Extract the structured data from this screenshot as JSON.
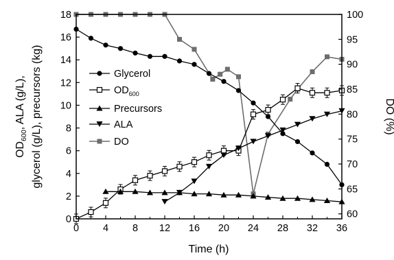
{
  "chart_data": {
    "type": "line",
    "xlabel": "Time (h)",
    "ylabel_left": {
      "line1_pre": "OD",
      "line1_sub": "600",
      "line1_post": ", ALA (g/L),",
      "line2": "glycerol (g/L), precursors (kg)"
    },
    "ylabel_right": "DO (%)",
    "xlim": [
      0,
      36
    ],
    "ylim_left": [
      0,
      18
    ],
    "ylim_right": [
      59,
      100
    ],
    "x_ticks": [
      "0",
      "4",
      "8",
      "12",
      "16",
      "20",
      "24",
      "28",
      "32",
      "36"
    ],
    "y_left_ticks": [
      "0",
      "2",
      "4",
      "6",
      "8",
      "10",
      "12",
      "14",
      "16",
      "18"
    ],
    "y_right_ticks": [
      "60",
      "65",
      "70",
      "75",
      "80",
      "85",
      "90",
      "95",
      "100"
    ],
    "legend": {
      "position": "center-left",
      "glycerol": "Glycerol",
      "od_pre": "OD",
      "od_sub": "600",
      "precursors": "Precursors",
      "ala": "ALA",
      "do": "DO"
    },
    "series": [
      {
        "name": "Glycerol",
        "axis": "left",
        "marker": "circle-filled",
        "x": [
          0,
          2,
          4,
          6,
          8,
          10,
          12,
          14,
          16,
          18,
          20,
          22,
          24,
          26,
          28,
          30,
          32,
          34,
          36
        ],
        "y": [
          16.7,
          15.9,
          15.3,
          15.0,
          14.6,
          14.3,
          14.3,
          13.9,
          13.6,
          12.8,
          12.1,
          11.3,
          10.2,
          9.0,
          7.5,
          6.8,
          5.8,
          4.8,
          3.0
        ]
      },
      {
        "name": "OD600",
        "axis": "left",
        "marker": "square-open",
        "x": [
          0,
          2,
          4,
          6,
          8,
          10,
          12,
          14,
          16,
          18,
          20,
          22,
          24,
          26,
          28,
          30,
          32,
          34,
          36
        ],
        "y": [
          0.0,
          0.6,
          1.4,
          2.6,
          3.4,
          3.8,
          4.2,
          4.6,
          5.0,
          5.6,
          6.0,
          6.0,
          9.2,
          9.6,
          10.5,
          11.5,
          11.1,
          11.1,
          11.3
        ]
      },
      {
        "name": "Precursors",
        "axis": "left",
        "marker": "triangle-up",
        "x": [
          4,
          6,
          8,
          10,
          12,
          14,
          16,
          18,
          20,
          22,
          24,
          26,
          28,
          30,
          32,
          34,
          36
        ],
        "y": [
          2.4,
          2.4,
          2.4,
          2.3,
          2.3,
          2.3,
          2.2,
          2.2,
          2.1,
          2.1,
          2.0,
          1.9,
          1.8,
          1.8,
          1.7,
          1.6,
          1.5
        ]
      },
      {
        "name": "ALA",
        "axis": "left",
        "marker": "triangle-down",
        "x": [
          12,
          14,
          16,
          18,
          20,
          22,
          24,
          26,
          28,
          30,
          32,
          34,
          36
        ],
        "y": [
          1.5,
          2.3,
          3.3,
          4.6,
          5.6,
          6.2,
          6.8,
          7.3,
          7.8,
          8.3,
          8.8,
          9.2,
          9.5
        ]
      },
      {
        "name": "DO",
        "axis": "right",
        "marker": "square-filled",
        "x": [
          0,
          2,
          4,
          6,
          8,
          10,
          12,
          14,
          16,
          18.5,
          19.5,
          20.5,
          22,
          24,
          26,
          29,
          30,
          32,
          34,
          36
        ],
        "y": [
          100,
          100,
          100,
          100,
          100,
          100,
          100,
          95,
          93,
          87,
          88,
          89,
          87.5,
          64,
          76,
          83,
          85,
          88.5,
          91.5,
          91
        ]
      }
    ]
  }
}
